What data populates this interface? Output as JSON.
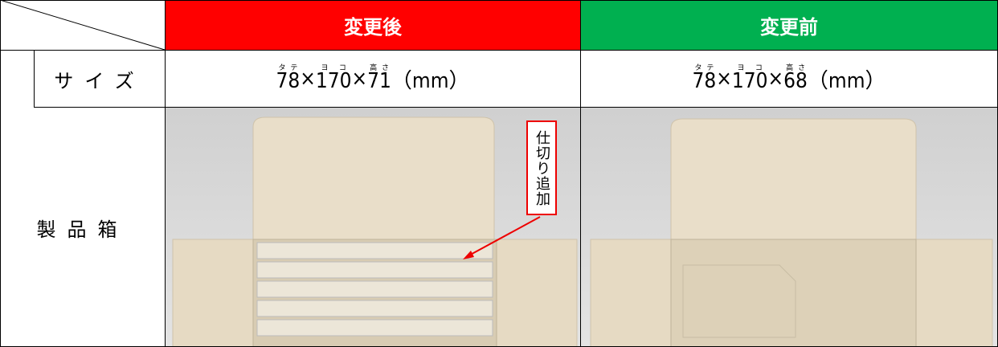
{
  "header": {
    "columns": [
      "変更後",
      "変更前"
    ]
  },
  "rows": [
    {
      "label": "サイズ",
      "cells": [
        {
          "dimensions": [
            {
              "value": "78",
              "ruby": "タテ"
            },
            {
              "value": "170",
              "ruby": "ヨコ"
            },
            {
              "value": "71",
              "ruby": "高さ"
            }
          ],
          "separator": "×",
          "unit": "（mm）"
        },
        {
          "dimensions": [
            {
              "value": "78",
              "ruby": "タテ"
            },
            {
              "value": "170",
              "ruby": "ヨコ"
            },
            {
              "value": "68",
              "ruby": "高さ"
            }
          ],
          "separator": "×",
          "unit": "（mm）"
        }
      ]
    },
    {
      "label": "製品箱"
    }
  ],
  "annotation": "仕切り追加"
}
